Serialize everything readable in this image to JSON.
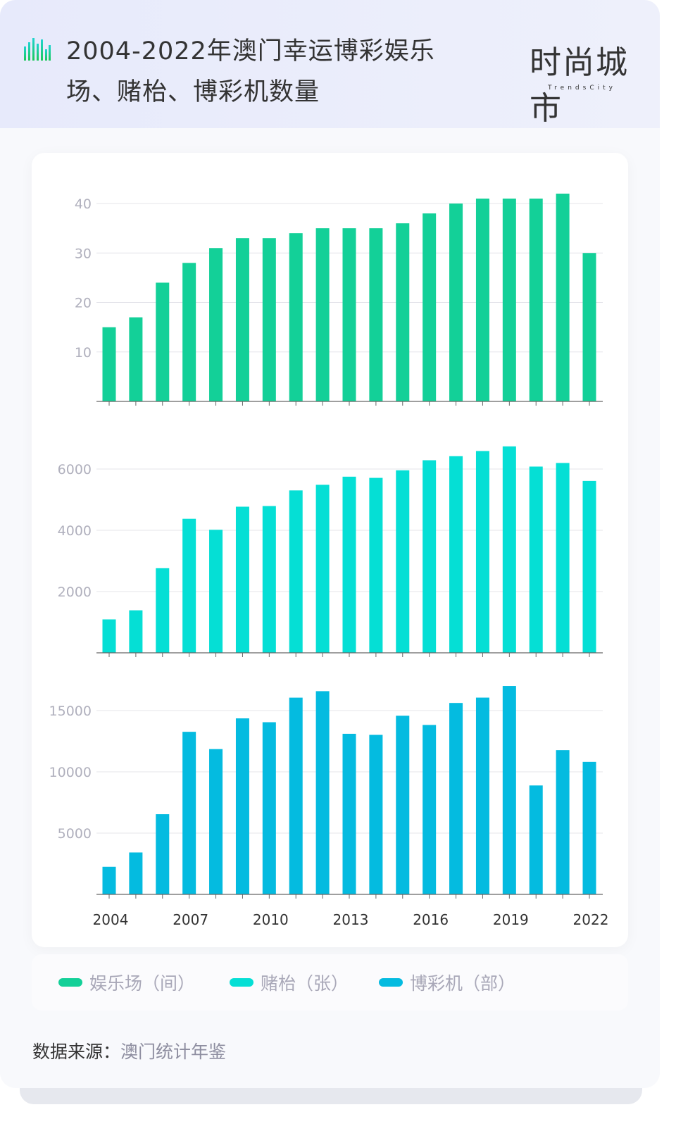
{
  "header": {
    "title": "2004-2022年澳门幸运博彩娱乐场、赌枱、博彩机数量",
    "logo_text": "时尚城市",
    "logo_subtext": "TrendsCity"
  },
  "colors": {
    "casinos": "#13d098",
    "tables": "#05dfd5",
    "machines": "#04bbe0"
  },
  "legend": [
    {
      "label": "娱乐场（间）",
      "color": "#13d098"
    },
    {
      "label": "赌枱（张）",
      "color": "#05dfd5"
    },
    {
      "label": "博彩机（部）",
      "color": "#04bbe0"
    }
  ],
  "source": {
    "label": "数据来源：",
    "value": "澳门统计年鉴"
  },
  "chart_data": [
    {
      "type": "bar",
      "title": "",
      "series_name": "娱乐场（间）",
      "categories": [
        "2004",
        "2005",
        "2006",
        "2007",
        "2008",
        "2009",
        "2010",
        "2011",
        "2012",
        "2013",
        "2014",
        "2015",
        "2016",
        "2017",
        "2018",
        "2019",
        "2020",
        "2021",
        "2022"
      ],
      "values": [
        15,
        17,
        24,
        28,
        31,
        33,
        33,
        34,
        35,
        35,
        35,
        36,
        38,
        40,
        41,
        41,
        41,
        42,
        30
      ],
      "yticks": [
        10,
        20,
        30,
        40
      ],
      "ylim": [
        0,
        45
      ],
      "grid": true
    },
    {
      "type": "bar",
      "title": "",
      "series_name": "赌枱（张）",
      "categories": [
        "2004",
        "2005",
        "2006",
        "2007",
        "2008",
        "2009",
        "2010",
        "2011",
        "2012",
        "2013",
        "2014",
        "2015",
        "2016",
        "2017",
        "2018",
        "2019",
        "2020",
        "2021",
        "2022"
      ],
      "values": [
        1092,
        1388,
        2762,
        4375,
        4017,
        4770,
        4791,
        5302,
        5485,
        5750,
        5711,
        5957,
        6287,
        6419,
        6588,
        6739,
        6080,
        6198,
        5612
      ],
      "yticks": [
        2000,
        4000,
        6000
      ],
      "ylim": [
        0,
        7200
      ],
      "grid": true
    },
    {
      "type": "bar",
      "title": "",
      "series_name": "博彩机（部）",
      "categories": [
        "2004",
        "2005",
        "2006",
        "2007",
        "2008",
        "2009",
        "2010",
        "2011",
        "2012",
        "2013",
        "2014",
        "2015",
        "2016",
        "2017",
        "2018",
        "2019",
        "2020",
        "2021",
        "2022"
      ],
      "values": [
        2254,
        3421,
        6546,
        13267,
        11856,
        14363,
        14050,
        16056,
        16585,
        13106,
        13018,
        14578,
        13826,
        15622,
        16059,
        17009,
        8889,
        11773,
        10814
      ],
      "yticks": [
        5000,
        10000,
        15000
      ],
      "ylim": [
        0,
        18000
      ],
      "xtick_labels": [
        "2004",
        "2007",
        "2010",
        "2013",
        "2016",
        "2019",
        "2022"
      ],
      "grid": true
    }
  ]
}
